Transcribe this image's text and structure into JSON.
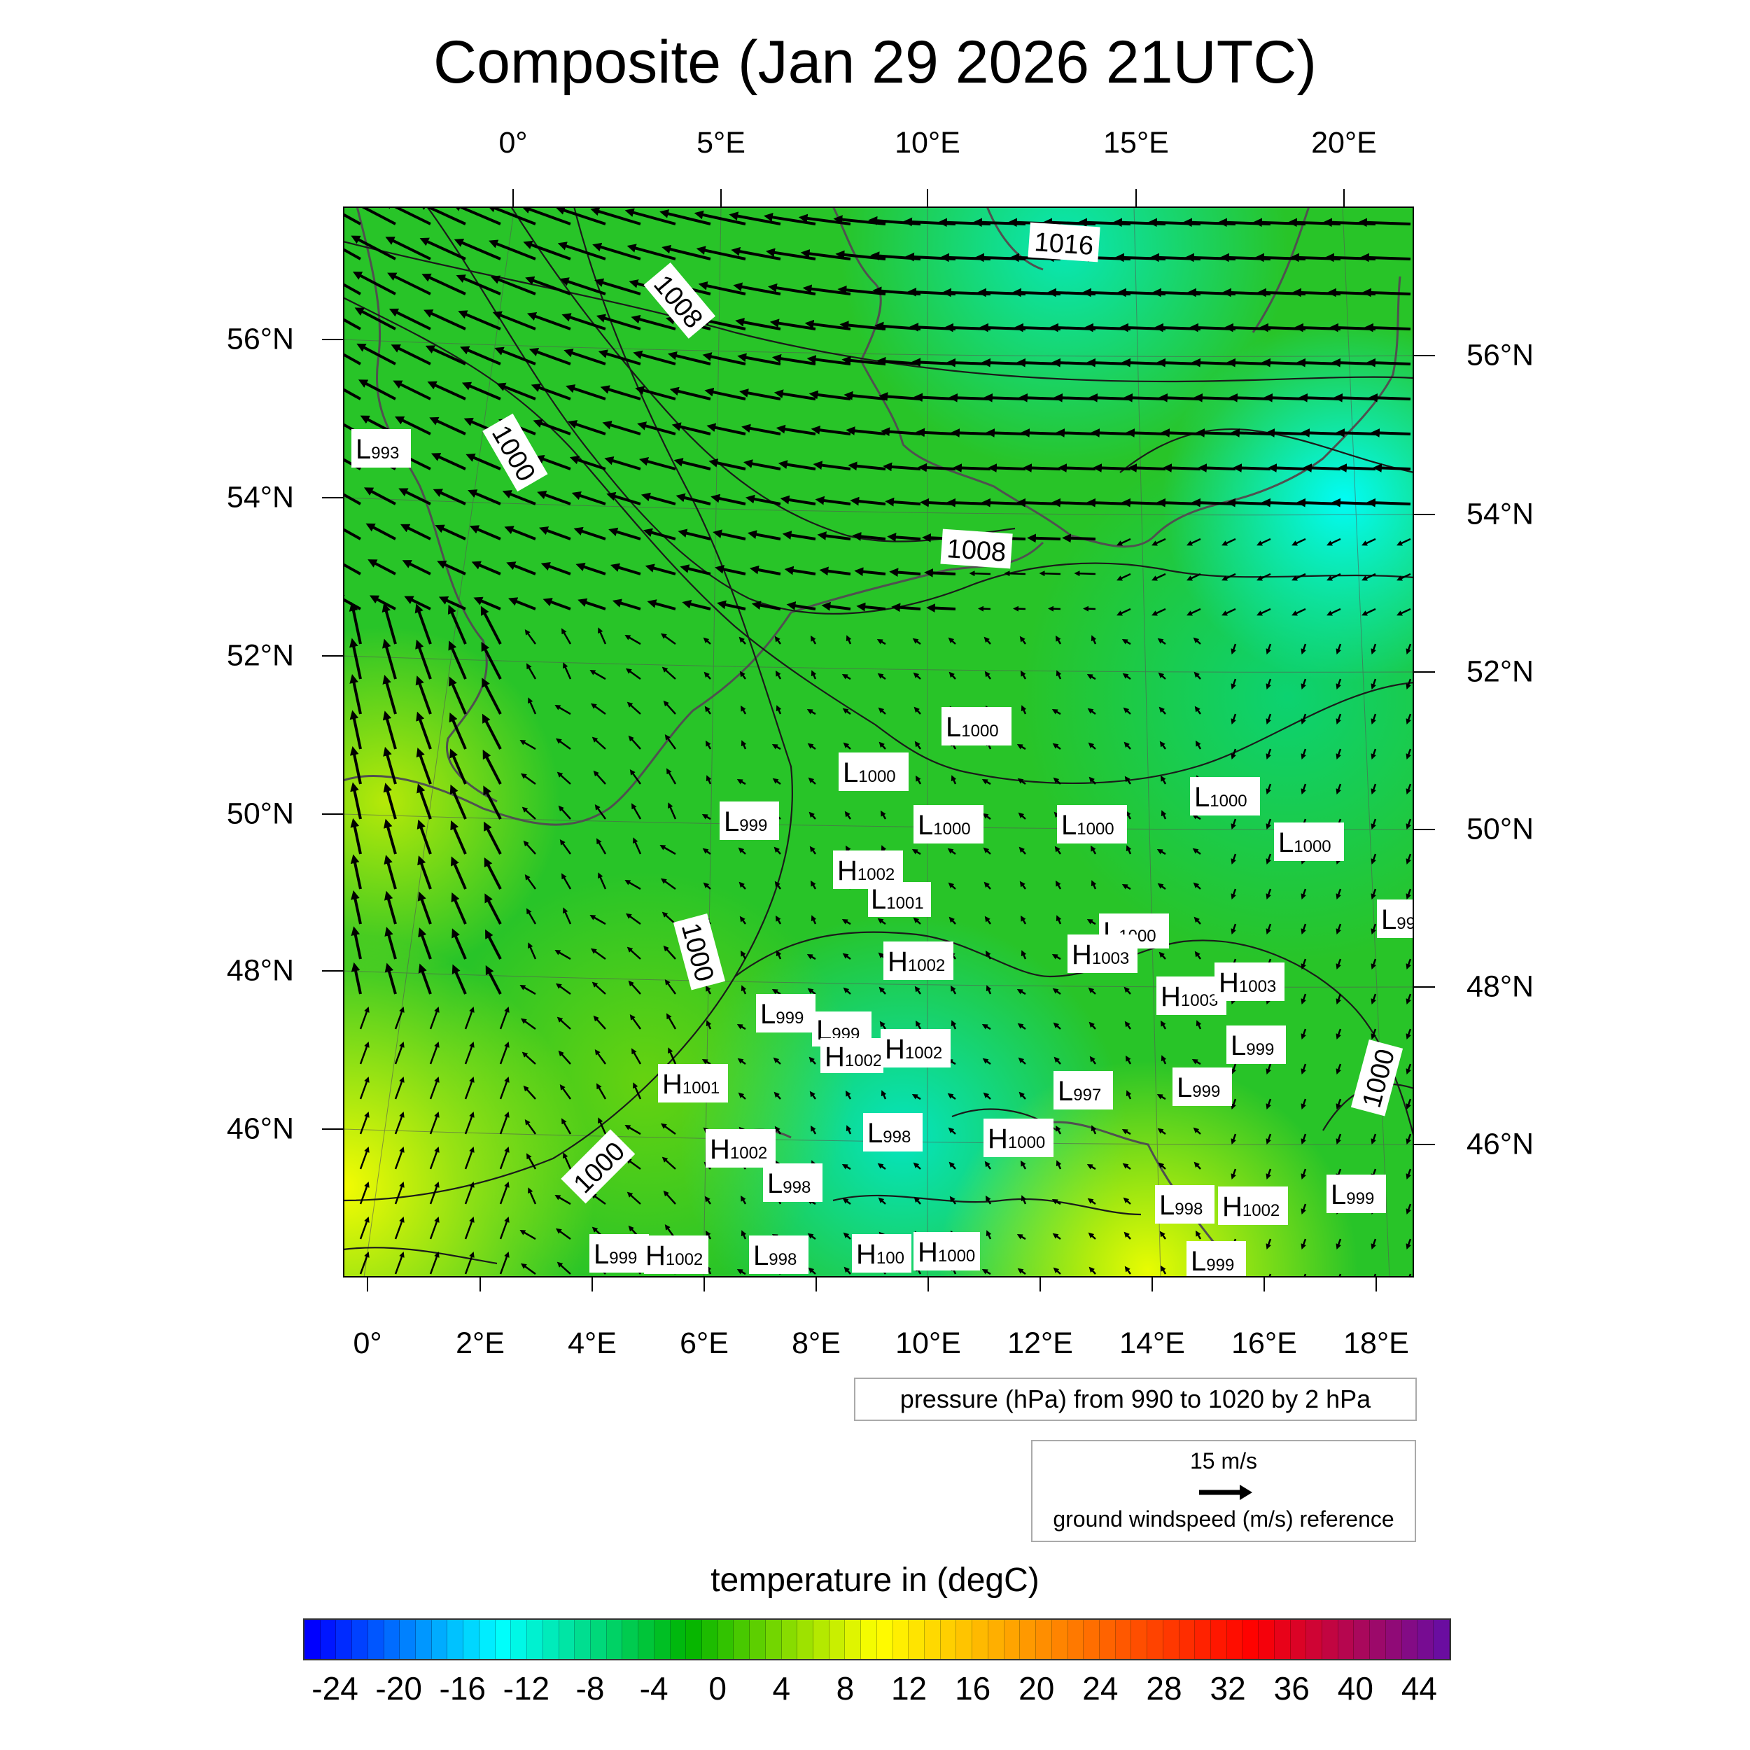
{
  "title": "Composite (Jan 29 2026 21UTC)",
  "top_lon_ticks": [
    "0°",
    "5°E",
    "10°E",
    "15°E",
    "20°E"
  ],
  "bottom_lon_ticks": [
    "0°",
    "2°E",
    "4°E",
    "6°E",
    "8°E",
    "10°E",
    "12°E",
    "14°E",
    "16°E",
    "18°E"
  ],
  "left_lat_ticks": [
    "56°N",
    "54°N",
    "52°N",
    "50°N",
    "48°N",
    "46°N"
  ],
  "right_lat_ticks": [
    "56°N",
    "54°N",
    "52°N",
    "50°N",
    "48°N",
    "46°N"
  ],
  "contour_info": "pressure (hPa) from 990 to 1020 by 2 hPa",
  "wind_reference": {
    "speed": "15 m/s",
    "label": "ground windspeed (m/s) reference"
  },
  "colorbar": {
    "title": "temperature in (degC)",
    "tick_labels": [
      "-24",
      "-20",
      "-16",
      "-12",
      "-8",
      "-4",
      "0",
      "4",
      "8",
      "12",
      "16",
      "20",
      "24",
      "28",
      "32",
      "36",
      "40",
      "44"
    ],
    "range": [
      -26,
      46
    ],
    "colors": [
      "#0000ff",
      "#00ffff",
      "#00b400",
      "#ffff00",
      "#ff8000",
      "#ff0000",
      "#6a0da0"
    ]
  },
  "contour_labels": [
    "1016",
    "1008",
    "1000",
    "1008",
    "1000",
    "1000",
    "1000"
  ],
  "pressure_centers": [
    {
      "type": "L",
      "value": "993"
    },
    {
      "type": "L",
      "value": "1000"
    },
    {
      "type": "L",
      "value": "1000"
    },
    {
      "type": "L",
      "value": "999"
    },
    {
      "type": "L",
      "value": "1000"
    },
    {
      "type": "L",
      "value": "1000"
    },
    {
      "type": "L",
      "value": "1000"
    },
    {
      "type": "L",
      "value": "1000"
    },
    {
      "type": "H",
      "value": "1002"
    },
    {
      "type": "L",
      "value": "1001"
    },
    {
      "type": "L",
      "value": "1000"
    },
    {
      "type": "H",
      "value": "1003"
    },
    {
      "type": "H",
      "value": "1002"
    },
    {
      "type": "H",
      "value": "1003"
    },
    {
      "type": "H",
      "value": "1003"
    },
    {
      "type": "L",
      "value": "999"
    },
    {
      "type": "L",
      "value": "999"
    },
    {
      "type": "H",
      "value": "1002"
    },
    {
      "type": "H",
      "value": "1002"
    },
    {
      "type": "L",
      "value": "999"
    },
    {
      "type": "H",
      "value": "1001"
    },
    {
      "type": "L",
      "value": "997"
    },
    {
      "type": "L",
      "value": "999"
    },
    {
      "type": "L",
      "value": "998"
    },
    {
      "type": "H",
      "value": "1000"
    },
    {
      "type": "H",
      "value": "1002"
    },
    {
      "type": "L",
      "value": "998"
    },
    {
      "type": "L",
      "value": "998"
    },
    {
      "type": "H",
      "value": "1002"
    },
    {
      "type": "L",
      "value": "999"
    },
    {
      "type": "L",
      "value": "999"
    },
    {
      "type": "H",
      "value": "1002"
    },
    {
      "type": "L",
      "value": "998"
    },
    {
      "type": "H",
      "value": "100"
    },
    {
      "type": "H",
      "value": "1000"
    },
    {
      "type": "L",
      "value": "999"
    },
    {
      "type": "L",
      "value": "99"
    }
  ]
}
